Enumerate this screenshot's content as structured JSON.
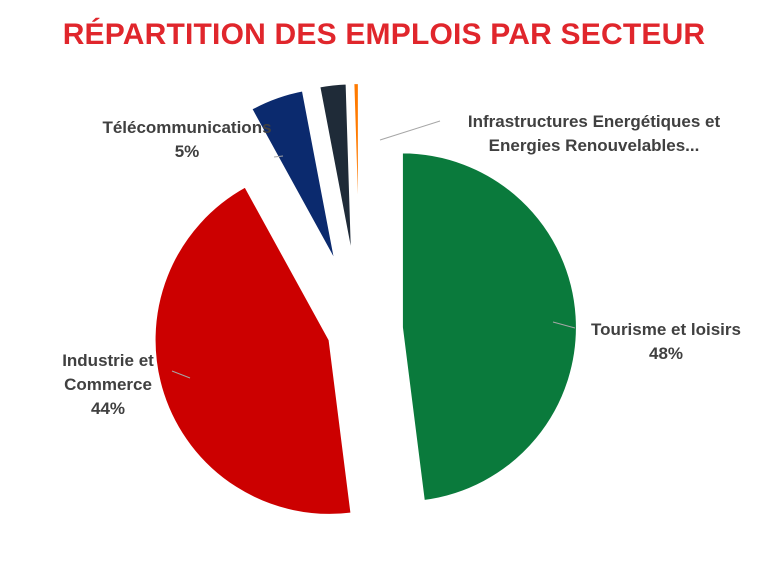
{
  "title": "RÉPARTITION DES EMPLOIS PAR SECTEUR",
  "chart_data": {
    "type": "pie",
    "title": "RÉPARTITION DES EMPLOIS PAR SECTEUR",
    "slices": [
      {
        "label": "Tourisme et loisirs",
        "label_lines": [
          "Tourisme et loisirs"
        ],
        "percent_label": "48%",
        "value": 48,
        "color": "#0a7a3c"
      },
      {
        "label": "Industrie et Commerce",
        "label_lines": [
          "Industrie et",
          "Commerce"
        ],
        "percent_label": "44%",
        "value": 44,
        "color": "#cc0000"
      },
      {
        "label": "Télécommunications",
        "label_lines": [
          "Télécommunications"
        ],
        "percent_label": "5%",
        "value": 5,
        "color": "#0b2a6e"
      },
      {
        "label": "",
        "label_lines": [],
        "percent_label": "",
        "value": 2.5,
        "color": "#1f2b38"
      },
      {
        "label": "Infrastructures Energétiques et Energies Renouvelables...",
        "label_lines": [
          "Infrastructures Energétiques et",
          "Energies Renouvelables..."
        ],
        "percent_label": "",
        "value": 0.5,
        "color": "#ff7a00"
      }
    ],
    "legend": "none"
  }
}
